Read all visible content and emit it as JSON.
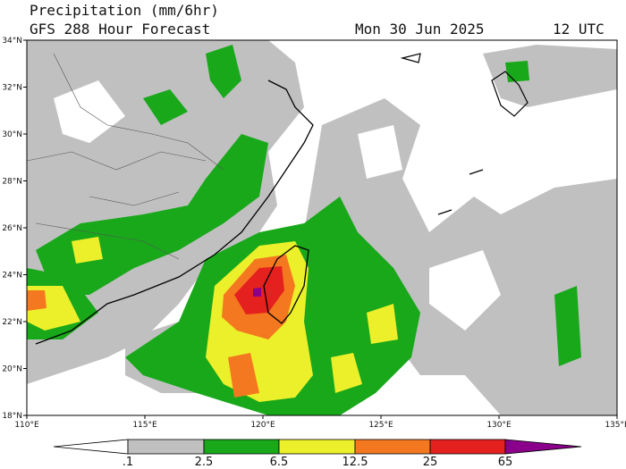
{
  "header": {
    "title": "Precipitation (mm/6hr)",
    "subtitle": "GFS 288 Hour Forecast",
    "date": "Mon 30 Jun 2025",
    "time": "12 UTC"
  },
  "map": {
    "lat_labels": [
      "34°N",
      "32°N",
      "30°N",
      "28°N",
      "26°N",
      "24°N",
      "22°N",
      "20°N",
      "18°N"
    ],
    "lon_labels": [
      "110°E",
      "115°E",
      "120°E",
      "125°E",
      "130°E",
      "135°E"
    ]
  },
  "colorbar": {
    "labels": [
      ".1",
      "2.5",
      "6.5",
      "12.5",
      "25",
      "65"
    ]
  }
}
